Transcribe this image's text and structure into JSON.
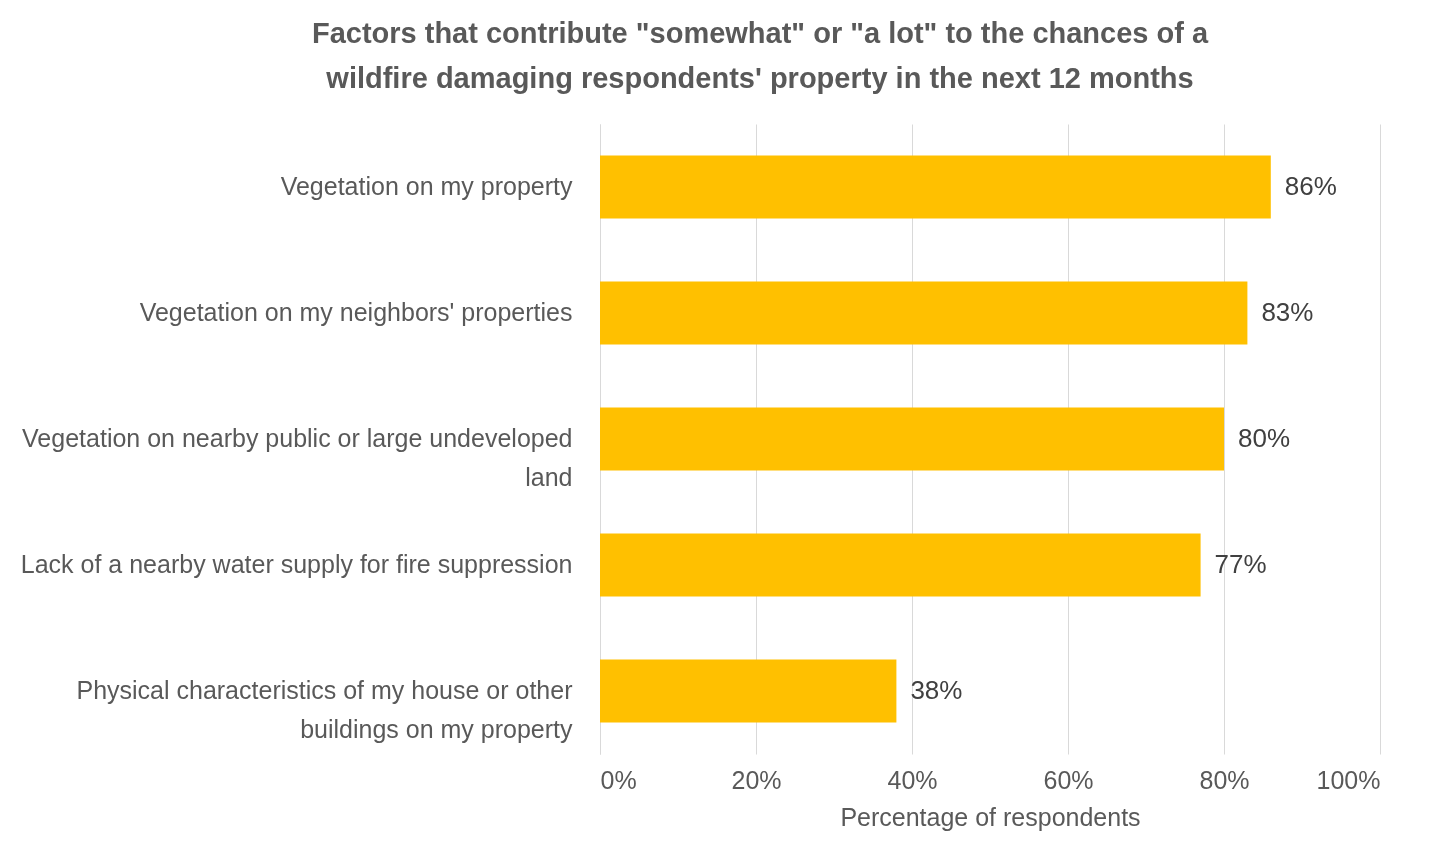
{
  "chart_data": {
    "type": "bar",
    "orientation": "horizontal",
    "title": "Factors that contribute \"somewhat\" or \"a lot\" to the chances of a wildfire damaging respondents' property in the next 12 months",
    "xlabel": "Percentage of respondents",
    "categories": [
      "Vegetation on my property",
      "Vegetation on my neighbors' properties",
      "Vegetation on nearby public or large undeveloped land",
      "Lack of a nearby water supply for fire suppression",
      "Physical characteristics of my house or other buildings on my property"
    ],
    "values": [
      86,
      83,
      80,
      77,
      38
    ],
    "value_labels": [
      "86%",
      "83%",
      "80%",
      "77%",
      "38%"
    ],
    "color": "#ffc000",
    "xlim": [
      0,
      100
    ],
    "xticks": [
      {
        "value": 0,
        "label": "0%"
      },
      {
        "value": 20,
        "label": "20%"
      },
      {
        "value": 40,
        "label": "40%"
      },
      {
        "value": 60,
        "label": "60%"
      },
      {
        "value": 80,
        "label": "80%"
      },
      {
        "value": 100,
        "label": "100%"
      }
    ],
    "grid": "x"
  }
}
